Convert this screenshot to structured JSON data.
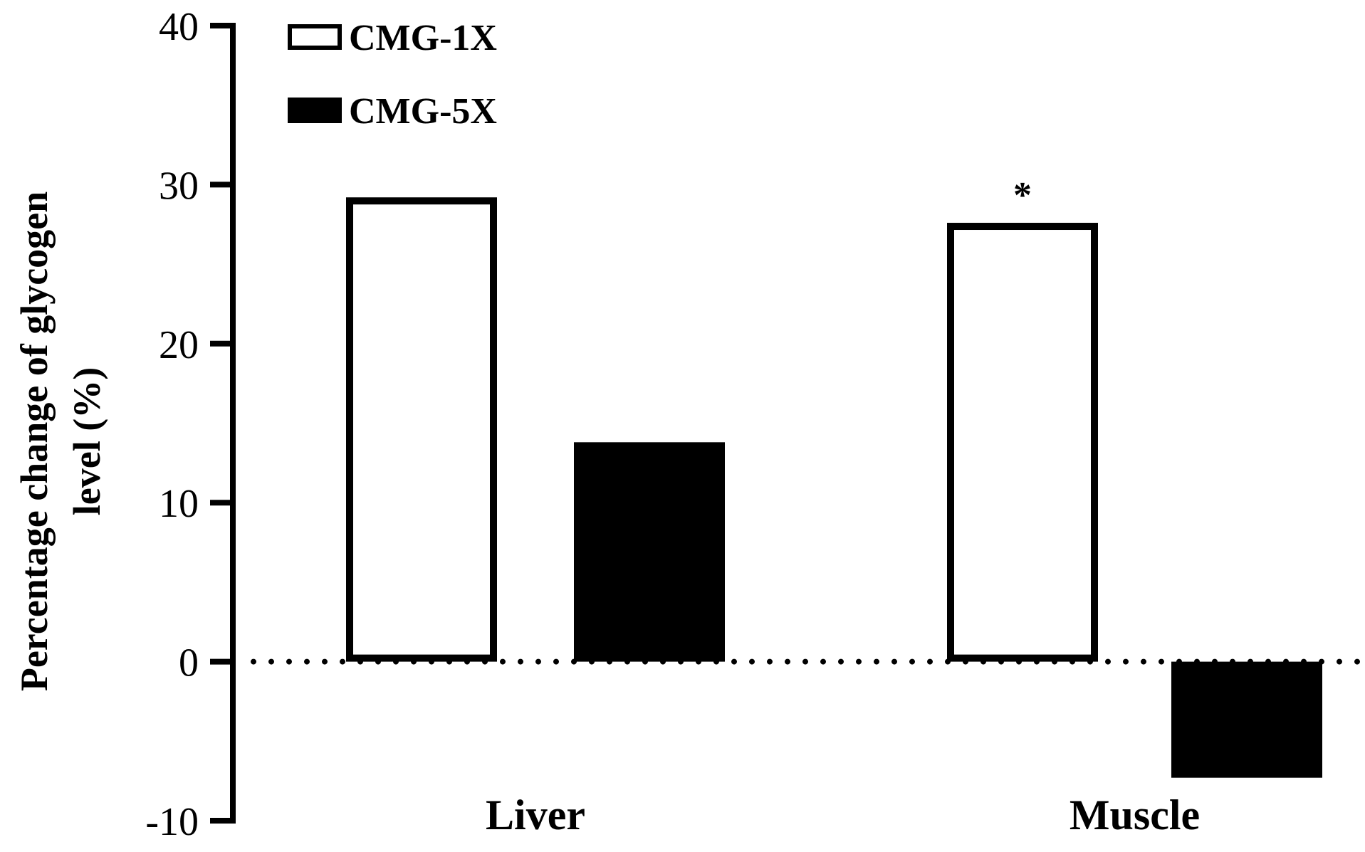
{
  "chart_data": {
    "type": "bar",
    "categories": [
      "Liver",
      "Muscle"
    ],
    "series": [
      {
        "name": "CMG-1X",
        "values": [
          29.2,
          27.6
        ],
        "fill": "#ffffff",
        "stroke": "#000000"
      },
      {
        "name": "CMG-5X",
        "values": [
          13.8,
          -7.3
        ],
        "fill": "#000000",
        "stroke": "#000000"
      }
    ],
    "ylabel_lines": [
      "Percentage change of glycogen",
      "level  (%)"
    ],
    "ylim": [
      -10,
      40
    ],
    "yticks": [
      40,
      30,
      20,
      10,
      0,
      -10
    ],
    "zero_line": "dotted",
    "legend_position": "top-left",
    "annotations": [
      {
        "text": "*",
        "category": "Muscle",
        "series": "CMG-1X"
      }
    ],
    "grid": false
  }
}
